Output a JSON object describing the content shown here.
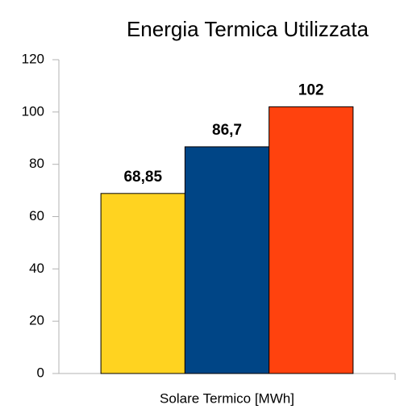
{
  "chart_data": {
    "type": "bar",
    "title": "Energia Termica Utilizzata",
    "categories": [
      "Solare Termico [MWh]"
    ],
    "series": [
      {
        "color": "#ffd320",
        "values": [
          68.85
        ],
        "value_labels": [
          "68,85"
        ]
      },
      {
        "color": "#004586",
        "values": [
          86.7
        ],
        "value_labels": [
          "86,7"
        ]
      },
      {
        "color": "#ff420e",
        "values": [
          102
        ],
        "value_labels": [
          "102"
        ]
      }
    ],
    "ylim": [
      0,
      120
    ],
    "yticks": [
      0,
      20,
      40,
      60,
      80,
      100,
      120
    ],
    "grid": false
  }
}
